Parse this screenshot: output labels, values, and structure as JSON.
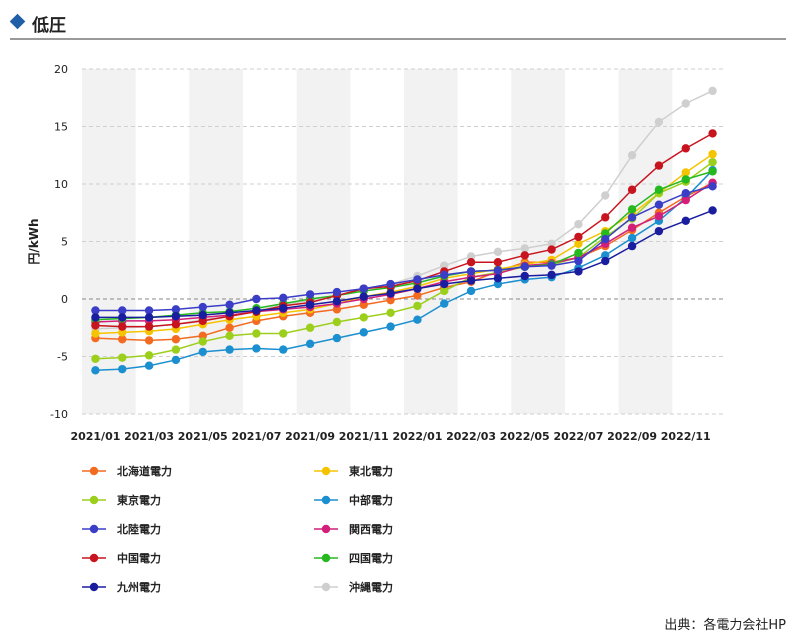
{
  "header": {
    "title": "低圧"
  },
  "source": "出典：各電力会社HP",
  "chart_data": {
    "type": "line",
    "title": "低圧",
    "xlabel": "",
    "ylabel": "円/kWh",
    "ylim": [
      -10,
      20
    ],
    "yticks": [
      -10,
      -5,
      0,
      5,
      10,
      15,
      20
    ],
    "grid": true,
    "legend_position": "bottom",
    "categories": [
      "2021/01",
      "2021/02",
      "2021/03",
      "2021/04",
      "2021/05",
      "2021/06",
      "2021/07",
      "2021/08",
      "2021/09",
      "2021/10",
      "2021/11",
      "2021/12",
      "2022/01",
      "2022/02",
      "2022/03",
      "2022/04",
      "2022/05",
      "2022/06",
      "2022/07",
      "2022/08",
      "2022/09",
      "2022/10",
      "2022/11",
      "2022/12"
    ],
    "tick_labels": [
      "2021/01",
      "2021/03",
      "2021/05",
      "2021/07",
      "2021/09",
      "2021/11",
      "2022/01",
      "2022/03",
      "2022/05",
      "2022/07",
      "2022/09",
      "2022/11"
    ],
    "series": [
      {
        "name": "北海道電力",
        "color": "#f26b21",
        "values": [
          -3.4,
          -3.5,
          -3.6,
          -3.5,
          -3.2,
          -2.5,
          -1.9,
          -1.5,
          -1.2,
          -0.9,
          -0.5,
          -0.1,
          0.3,
          1.0,
          1.5,
          2.4,
          3.2,
          3.2,
          3.6,
          4.6,
          6.0,
          7.5,
          8.9,
          10.1
        ]
      },
      {
        "name": "東北電力",
        "color": "#f5c400",
        "values": [
          -3.0,
          -2.9,
          -2.8,
          -2.6,
          -2.2,
          -1.8,
          -1.5,
          -1.2,
          -0.9,
          -0.4,
          0.2,
          0.6,
          1.1,
          1.8,
          2.2,
          2.6,
          3.0,
          3.4,
          4.8,
          5.9,
          7.4,
          9.2,
          11.0,
          12.6
        ]
      },
      {
        "name": "東京電力",
        "color": "#9ccf1c",
        "values": [
          -5.2,
          -5.1,
          -4.9,
          -4.4,
          -3.7,
          -3.2,
          -3.0,
          -3.0,
          -2.5,
          -2.0,
          -1.6,
          -1.2,
          -0.6,
          0.7,
          1.9,
          2.3,
          2.8,
          3.0,
          3.6,
          5.4,
          7.0,
          9.2,
          10.2,
          11.9
        ]
      },
      {
        "name": "中部電力",
        "color": "#1b8fcf",
        "values": [
          -6.2,
          -6.1,
          -5.8,
          -5.3,
          -4.6,
          -4.4,
          -4.3,
          -4.4,
          -3.9,
          -3.4,
          -2.9,
          -2.4,
          -1.8,
          -0.4,
          0.7,
          1.3,
          1.7,
          1.9,
          2.7,
          3.8,
          5.3,
          6.8,
          8.8,
          11.2
        ]
      },
      {
        "name": "北陸電力",
        "color": "#3a3ec7",
        "values": [
          -1.0,
          -1.0,
          -1.0,
          -0.9,
          -0.7,
          -0.5,
          0.0,
          0.1,
          0.4,
          0.6,
          0.9,
          1.3,
          1.7,
          2.1,
          2.4,
          2.5,
          2.8,
          2.9,
          3.3,
          5.2,
          7.1,
          8.2,
          9.2,
          9.8
        ]
      },
      {
        "name": "関西電力",
        "color": "#d21f79",
        "values": [
          -2.0,
          -1.9,
          -1.9,
          -1.8,
          -1.6,
          -1.4,
          -1.1,
          -0.9,
          -0.7,
          -0.4,
          0.0,
          0.4,
          0.9,
          1.5,
          1.9,
          2.2,
          2.9,
          3.1,
          3.6,
          4.8,
          6.2,
          7.2,
          8.6,
          10.1
        ]
      },
      {
        "name": "中国電力",
        "color": "#c8141e",
        "values": [
          -2.3,
          -2.4,
          -2.4,
          -2.2,
          -1.9,
          -1.5,
          -1.1,
          -0.6,
          -0.3,
          0.3,
          0.9,
          1.1,
          1.6,
          2.4,
          3.2,
          3.2,
          3.8,
          4.3,
          5.4,
          7.1,
          9.5,
          11.6,
          13.1,
          14.4
        ]
      },
      {
        "name": "四国電力",
        "color": "#25b81f",
        "values": [
          -1.8,
          -1.7,
          -1.6,
          -1.4,
          -1.2,
          -1.1,
          -0.8,
          -0.4,
          0.0,
          0.3,
          0.7,
          1.0,
          1.4,
          2.0,
          2.4,
          2.5,
          2.8,
          3.0,
          4.0,
          5.7,
          7.8,
          9.5,
          10.4,
          11.1
        ]
      },
      {
        "name": "九州電力",
        "color": "#1a1e9e",
        "values": [
          -1.6,
          -1.6,
          -1.6,
          -1.5,
          -1.4,
          -1.2,
          -1.0,
          -0.8,
          -0.5,
          -0.2,
          0.2,
          0.5,
          0.9,
          1.3,
          1.6,
          1.8,
          2.0,
          2.1,
          2.4,
          3.3,
          4.6,
          5.9,
          6.8,
          7.7
        ]
      },
      {
        "name": "沖縄電力",
        "color": "#cfcfcf",
        "values": [
          -2.6,
          -2.5,
          -2.4,
          -2.2,
          -1.8,
          -1.5,
          -1.0,
          -0.5,
          -0.1,
          0.3,
          0.8,
          1.3,
          2.0,
          2.9,
          3.7,
          4.1,
          4.4,
          4.8,
          6.5,
          9.0,
          12.5,
          15.4,
          17.0,
          18.1
        ]
      }
    ]
  }
}
